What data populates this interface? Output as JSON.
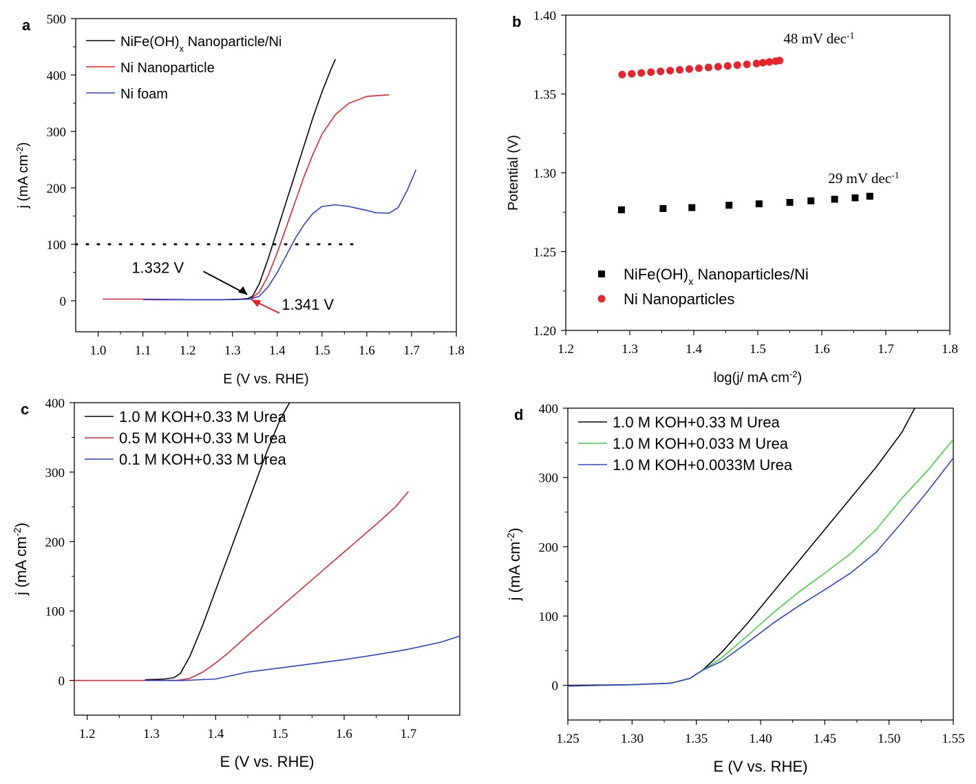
{
  "chart_data": [
    {
      "type": "line",
      "panel_label": "a",
      "xlabel": "E (V vs. RHE)",
      "ylabel": "j (mA cm-2)",
      "xlim": [
        0.95,
        1.8
      ],
      "ylim": [
        -55,
        500
      ],
      "xticks": [
        1.0,
        1.1,
        1.2,
        1.3,
        1.4,
        1.5,
        1.6,
        1.7,
        1.8
      ],
      "xtick_labels": [
        "1.0",
        "1.1",
        "1.2",
        "1.3",
        "1.4",
        "1.5",
        "1.6",
        "1.7",
        "1.8"
      ],
      "yticks": [
        0,
        100,
        200,
        300,
        400,
        500
      ],
      "ytick_labels": [
        "0",
        "100",
        "200",
        "300",
        "400",
        "500"
      ],
      "legend_position": "top-left",
      "series": [
        {
          "name": "NiFe(OH)x Nanoparticle/Ni",
          "color": "#000000",
          "points": [
            [
              1.12,
              2
            ],
            [
              1.2,
              2
            ],
            [
              1.28,
              2
            ],
            [
              1.32,
              3
            ],
            [
              1.335,
              4
            ],
            [
              1.345,
              8
            ],
            [
              1.36,
              30
            ],
            [
              1.38,
              75
            ],
            [
              1.4,
              125
            ],
            [
              1.42,
              175
            ],
            [
              1.44,
              225
            ],
            [
              1.46,
              275
            ],
            [
              1.48,
              325
            ],
            [
              1.5,
              370
            ],
            [
              1.52,
              410
            ],
            [
              1.53,
              428
            ]
          ]
        },
        {
          "name": "Ni Nanoparticle",
          "color": "#e8232e",
          "points": [
            [
              1.01,
              3
            ],
            [
              1.1,
              3
            ],
            [
              1.2,
              2
            ],
            [
              1.3,
              2
            ],
            [
              1.34,
              3
            ],
            [
              1.36,
              15
            ],
            [
              1.38,
              45
            ],
            [
              1.4,
              85
            ],
            [
              1.42,
              130
            ],
            [
              1.44,
              175
            ],
            [
              1.46,
              220
            ],
            [
              1.48,
              260
            ],
            [
              1.5,
              295
            ],
            [
              1.53,
              330
            ],
            [
              1.56,
              350
            ],
            [
              1.6,
              362
            ],
            [
              1.65,
              365
            ]
          ]
        },
        {
          "name": "Ni foam",
          "color": "#2b3fd6",
          "points": [
            [
              1.1,
              2
            ],
            [
              1.2,
              2
            ],
            [
              1.3,
              2
            ],
            [
              1.34,
              3
            ],
            [
              1.36,
              8
            ],
            [
              1.38,
              25
            ],
            [
              1.4,
              50
            ],
            [
              1.42,
              80
            ],
            [
              1.44,
              110
            ],
            [
              1.46,
              135
            ],
            [
              1.48,
              155
            ],
            [
              1.5,
              167
            ],
            [
              1.53,
              170
            ],
            [
              1.56,
              167
            ],
            [
              1.6,
              160
            ],
            [
              1.62,
              156
            ],
            [
              1.65,
              155
            ],
            [
              1.67,
              165
            ],
            [
              1.69,
              195
            ],
            [
              1.71,
              232
            ]
          ]
        }
      ],
      "reference_line": {
        "y": 100,
        "x_range": [
          0.95,
          1.57
        ],
        "style": "dotted"
      },
      "annotations": [
        {
          "text": "1.332 V",
          "color": "#000000"
        },
        {
          "text": "1.341 V",
          "color": "#e8232e"
        }
      ]
    },
    {
      "type": "scatter",
      "panel_label": "b",
      "xlabel": "log(j/ mA cm-2)",
      "ylabel": "Potential (V)",
      "xlim": [
        1.2,
        1.8
      ],
      "ylim": [
        1.2,
        1.4
      ],
      "xticks": [
        1.2,
        1.3,
        1.4,
        1.5,
        1.6,
        1.7,
        1.8
      ],
      "xtick_labels": [
        "1.2",
        "1.3",
        "1.4",
        "1.5",
        "1.6",
        "1.7",
        "1.8"
      ],
      "yticks": [
        1.2,
        1.25,
        1.3,
        1.35,
        1.4
      ],
      "ytick_labels": [
        "1.20",
        "1.25",
        "1.30",
        "1.35",
        "1.40"
      ],
      "legend_position": "bottom-left",
      "series": [
        {
          "name": "NiFe(OH)x Nanoparticles/Ni",
          "color": "#000000",
          "marker": "square",
          "points": [
            [
              1.287,
              1.2765
            ],
            [
              1.352,
              1.2773
            ],
            [
              1.397,
              1.2779
            ],
            [
              1.455,
              1.2794
            ],
            [
              1.502,
              1.2803
            ],
            [
              1.55,
              1.2812
            ],
            [
              1.583,
              1.2822
            ],
            [
              1.62,
              1.2832
            ],
            [
              1.652,
              1.2841
            ],
            [
              1.675,
              1.2851
            ]
          ]
        },
        {
          "name": "Ni Nanoparticles",
          "color": "#e8232e",
          "marker": "circle",
          "points": [
            [
              1.288,
              1.3623
            ],
            [
              1.303,
              1.3628
            ],
            [
              1.318,
              1.3633
            ],
            [
              1.333,
              1.3638
            ],
            [
              1.348,
              1.3643
            ],
            [
              1.363,
              1.3648
            ],
            [
              1.378,
              1.3653
            ],
            [
              1.393,
              1.3658
            ],
            [
              1.408,
              1.3663
            ],
            [
              1.423,
              1.3668
            ],
            [
              1.438,
              1.3673
            ],
            [
              1.453,
              1.3678
            ],
            [
              1.468,
              1.3683
            ],
            [
              1.483,
              1.3688
            ],
            [
              1.498,
              1.3693
            ],
            [
              1.508,
              1.3698
            ],
            [
              1.518,
              1.3703
            ],
            [
              1.528,
              1.3708
            ],
            [
              1.534,
              1.3712
            ]
          ]
        }
      ],
      "annotations": [
        {
          "text": "48 mV dec",
          "superscript": "-1"
        },
        {
          "text": "29 mV dec",
          "superscript": "-1"
        }
      ]
    },
    {
      "type": "line",
      "panel_label": "c",
      "xlabel": "E (V vs. RHE)",
      "ylabel": "j (mA cm-2)",
      "xlim": [
        1.18,
        1.78
      ],
      "ylim": [
        -50,
        400
      ],
      "xticks": [
        1.2,
        1.3,
        1.4,
        1.5,
        1.6,
        1.7
      ],
      "xtick_labels": [
        "1.2",
        "1.3",
        "1.4",
        "1.5",
        "1.6",
        "1.7"
      ],
      "yticks": [
        0,
        100,
        200,
        300,
        400
      ],
      "ytick_labels": [
        "0",
        "100",
        "200",
        "300",
        "400"
      ],
      "legend_position": "top-left",
      "series": [
        {
          "name": "1.0 M KOH+0.33 M Urea",
          "color": "#000000",
          "points": [
            [
              1.29,
              1
            ],
            [
              1.32,
              2
            ],
            [
              1.335,
              4
            ],
            [
              1.345,
              10
            ],
            [
              1.36,
              35
            ],
            [
              1.38,
              80
            ],
            [
              1.4,
              130
            ],
            [
              1.42,
              180
            ],
            [
              1.44,
              230
            ],
            [
              1.46,
              280
            ],
            [
              1.48,
              330
            ],
            [
              1.5,
              375
            ],
            [
              1.515,
              400
            ]
          ]
        },
        {
          "name": "0.5 M KOH+0.33 M Urea",
          "color": "#e8232e",
          "points": [
            [
              1.18,
              0
            ],
            [
              1.3,
              0
            ],
            [
              1.34,
              0
            ],
            [
              1.36,
              3
            ],
            [
              1.38,
              12
            ],
            [
              1.4,
              25
            ],
            [
              1.42,
              40
            ],
            [
              1.45,
              65
            ],
            [
              1.5,
              105
            ],
            [
              1.55,
              145
            ],
            [
              1.6,
              185
            ],
            [
              1.65,
              225
            ],
            [
              1.68,
              250
            ],
            [
              1.7,
              272
            ]
          ]
        },
        {
          "name": "0.1 M KOH+0.33 M Urea",
          "color": "#2b3fd6",
          "points": [
            [
              1.29,
              0
            ],
            [
              1.35,
              0
            ],
            [
              1.4,
              2
            ],
            [
              1.42,
              6
            ],
            [
              1.45,
              12
            ],
            [
              1.5,
              18
            ],
            [
              1.55,
              24
            ],
            [
              1.6,
              30
            ],
            [
              1.65,
              37
            ],
            [
              1.7,
              45
            ],
            [
              1.75,
              55
            ],
            [
              1.78,
              64
            ]
          ]
        }
      ]
    },
    {
      "type": "line",
      "panel_label": "d",
      "xlabel": "E (V vs. RHE)",
      "ylabel": "j (mA cm-2)",
      "xlim": [
        1.25,
        1.55
      ],
      "ylim": [
        -50,
        400
      ],
      "xticks": [
        1.25,
        1.3,
        1.35,
        1.4,
        1.45,
        1.5,
        1.55
      ],
      "xtick_labels": [
        "1.25",
        "1.30",
        "1.35",
        "1.40",
        "1.45",
        "1.50",
        "1.55"
      ],
      "yticks": [
        0,
        100,
        200,
        300,
        400
      ],
      "ytick_labels": [
        "0",
        "100",
        "200",
        "300",
        "400"
      ],
      "legend_position": "top-left",
      "series": [
        {
          "name": "1.0 M KOH+0.33 M Urea",
          "color": "#000000",
          "points": [
            [
              1.25,
              0
            ],
            [
              1.3,
              1
            ],
            [
              1.33,
              3
            ],
            [
              1.345,
              10
            ],
            [
              1.355,
              22
            ],
            [
              1.37,
              48
            ],
            [
              1.39,
              90
            ],
            [
              1.41,
              135
            ],
            [
              1.43,
              180
            ],
            [
              1.45,
              225
            ],
            [
              1.47,
              270
            ],
            [
              1.49,
              315
            ],
            [
              1.51,
              365
            ],
            [
              1.52,
              400
            ]
          ]
        },
        {
          "name": "1.0 M KOH+0.033 M Urea",
          "color": "#3ed13e",
          "points": [
            [
              1.25,
              -1
            ],
            [
              1.3,
              1
            ],
            [
              1.33,
              3
            ],
            [
              1.345,
              10
            ],
            [
              1.355,
              22
            ],
            [
              1.37,
              40
            ],
            [
              1.39,
              72
            ],
            [
              1.41,
              105
            ],
            [
              1.43,
              135
            ],
            [
              1.45,
              162
            ],
            [
              1.47,
              190
            ],
            [
              1.49,
              225
            ],
            [
              1.51,
              270
            ],
            [
              1.53,
              310
            ],
            [
              1.55,
              355
            ]
          ]
        },
        {
          "name": "1.0 M KOH+0.0033M Urea",
          "color": "#2b3fd6",
          "points": [
            [
              1.25,
              -1
            ],
            [
              1.3,
              1
            ],
            [
              1.33,
              3
            ],
            [
              1.345,
              10
            ],
            [
              1.355,
              22
            ],
            [
              1.37,
              35
            ],
            [
              1.39,
              62
            ],
            [
              1.41,
              90
            ],
            [
              1.43,
              115
            ],
            [
              1.45,
              138
            ],
            [
              1.47,
              162
            ],
            [
              1.49,
              192
            ],
            [
              1.51,
              235
            ],
            [
              1.53,
              280
            ],
            [
              1.55,
              328
            ]
          ]
        }
      ]
    }
  ]
}
